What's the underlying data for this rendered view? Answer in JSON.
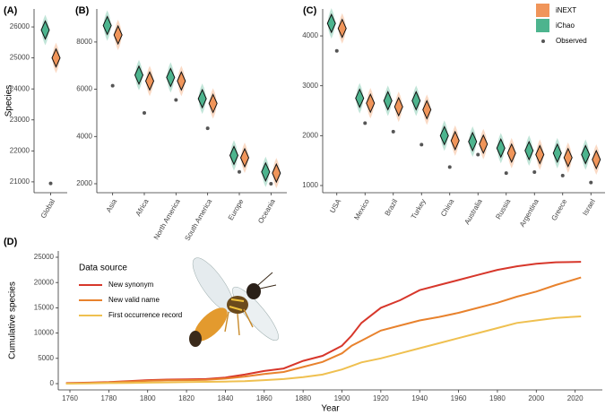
{
  "chart_data": [
    {
      "type": "violin",
      "label": "(A)",
      "ylabel": "Species",
      "categories": [
        "Global"
      ],
      "series": [
        {
          "color": "#f0955a",
          "marker": "diamond",
          "values": [
            25000
          ]
        },
        {
          "color": "#4db48e",
          "marker": "diamond",
          "values": [
            25900
          ]
        },
        {
          "color": "#555555",
          "marker": "dot",
          "values": [
            20950
          ]
        }
      ],
      "ylim": [
        20650,
        26580
      ],
      "yticks": [
        21000,
        22000,
        23000,
        24000,
        25000,
        26000
      ]
    },
    {
      "type": "violin",
      "label": "(B)",
      "categories": [
        "Asia",
        "Africa",
        "North America",
        "South America",
        "Europe",
        "Oceania"
      ],
      "series": [
        {
          "color": "#f0955a",
          "marker": "diamond",
          "values": [
            8300,
            6350,
            6350,
            5400,
            3100,
            2450
          ]
        },
        {
          "color": "#4db48e",
          "marker": "diamond",
          "values": [
            8700,
            6600,
            6500,
            5600,
            3200,
            2500
          ]
        },
        {
          "color": "#555555",
          "marker": "dot",
          "values": [
            6150,
            5000,
            5550,
            4350,
            2500,
            2000
          ]
        }
      ],
      "ylim": [
        1620,
        9400
      ],
      "yticks": [
        2000,
        4000,
        6000,
        8000
      ]
    },
    {
      "type": "violin",
      "label": "(C)",
      "legend": "top-right",
      "categories": [
        "USA",
        "Mexico",
        "Brazil",
        "Turkey",
        "China",
        "Australia",
        "Russia",
        "Argentina",
        "Greece",
        "Israel"
      ],
      "series": [
        {
          "name": "iNEXT",
          "color": "#f0955a",
          "marker": "diamond",
          "values": [
            4150,
            2650,
            2580,
            2520,
            1900,
            1830,
            1650,
            1620,
            1560,
            1520
          ]
        },
        {
          "name": "iChao",
          "color": "#4db48e",
          "marker": "diamond",
          "values": [
            4250,
            2750,
            2700,
            2700,
            2000,
            1880,
            1750,
            1700,
            1650,
            1620
          ]
        },
        {
          "name": "Observed",
          "color": "#555555",
          "marker": "dot",
          "values": [
            3700,
            2250,
            2080,
            1820,
            1370,
            1620,
            1250,
            1270,
            1200,
            1060
          ]
        }
      ],
      "ylim": [
        856,
        4540
      ],
      "yticks": [
        1000,
        2000,
        3000,
        4000
      ]
    },
    {
      "type": "line",
      "label": "(D)",
      "xlabel": "Year",
      "ylabel": "Cumulative species",
      "legend_title": "Data source",
      "x": [
        1758,
        1770,
        1780,
        1790,
        1800,
        1810,
        1820,
        1830,
        1840,
        1850,
        1860,
        1870,
        1880,
        1890,
        1900,
        1905,
        1910,
        1920,
        1930,
        1940,
        1950,
        1960,
        1970,
        1980,
        1990,
        2000,
        2010,
        2023
      ],
      "series": [
        {
          "name": "New synonym",
          "color": "#d7372b",
          "values": [
            100,
            200,
            300,
            500,
            700,
            800,
            850,
            900,
            1200,
            1800,
            2500,
            3000,
            4500,
            5500,
            7500,
            9500,
            12000,
            15000,
            16500,
            18500,
            19500,
            20500,
            21500,
            22500,
            23200,
            23700,
            24000,
            24100
          ]
        },
        {
          "name": "New valid name",
          "color": "#e8822d",
          "values": [
            50,
            150,
            250,
            400,
            550,
            650,
            700,
            750,
            1000,
            1400,
            1900,
            2300,
            3300,
            4300,
            6000,
            7500,
            8500,
            10500,
            11500,
            12500,
            13200,
            14000,
            15000,
            16000,
            17200,
            18200,
            19500,
            21000
          ]
        },
        {
          "name": "First occurrence record",
          "color": "#efc050",
          "values": [
            0,
            50,
            100,
            150,
            200,
            250,
            300,
            350,
            400,
            500,
            700,
            900,
            1300,
            1800,
            2800,
            3500,
            4200,
            5000,
            6000,
            7000,
            8000,
            9000,
            10000,
            11000,
            12000,
            12500,
            13000,
            13300
          ]
        }
      ],
      "xlim": [
        1754,
        2034
      ],
      "ylim": [
        -1240,
        26240
      ],
      "xticks": [
        1760,
        1780,
        1800,
        1820,
        1840,
        1860,
        1880,
        1900,
        1920,
        1940,
        1960,
        1980,
        2000,
        2020
      ],
      "yticks": [
        0,
        5000,
        10000,
        15000,
        20000,
        25000
      ]
    }
  ]
}
